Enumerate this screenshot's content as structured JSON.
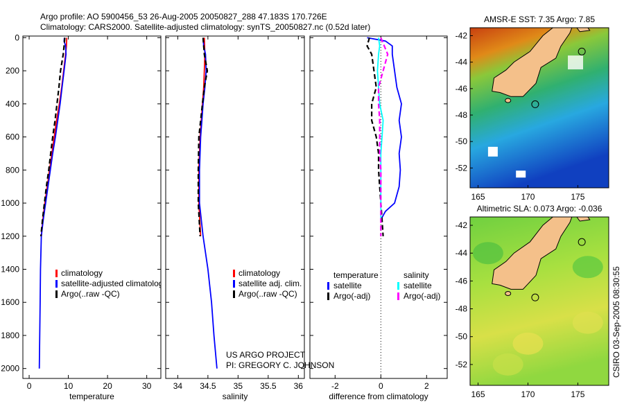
{
  "title_line1": "Argo profile: AO 5900456_53 26-Aug-2005 20050827_288 47.183S 170.726E",
  "title_line2": "Climatology: CARS2000. Satellite-adjusted climatology: synTS_20050827.nc (0.52d later)",
  "credit_line1": "US ARGO PROJECT",
  "credit_line2": "PI: GREGORY C. JOHNSON",
  "side_label": "CSIRO 03-Sep-2005 08:30:55",
  "chart_data": [
    {
      "type": "line",
      "id": "temperature",
      "xlabel": "temperature",
      "xlim": [
        -1.6,
        33.6
      ],
      "ylim": [
        2060,
        -10
      ],
      "xticks": [
        0,
        10,
        20,
        30
      ],
      "yticks": [
        0,
        200,
        400,
        600,
        800,
        1000,
        1200,
        1400,
        1600,
        1800,
        2000
      ],
      "legend": [
        "climatology",
        "satellite-adjusted climatolog",
        "Argo(..raw -QC)"
      ],
      "series": [
        {
          "name": "climatology",
          "color": "#ff0000",
          "style": "solid",
          "depth": [
            0,
            50,
            100,
            200,
            300,
            400,
            500,
            600,
            700,
            800,
            900,
            1000,
            1100,
            1200
          ],
          "values": [
            9.6,
            9.5,
            9.3,
            8.8,
            8.3,
            7.7,
            7.0,
            6.4,
            5.8,
            5.2,
            4.6,
            4.0,
            3.5,
            3.1
          ]
        },
        {
          "name": "satellite-adjusted climatology",
          "color": "#0000ff",
          "style": "solid",
          "depth": [
            0,
            20,
            50,
            100,
            200,
            300,
            400,
            500,
            600,
            700,
            800,
            900,
            1000,
            1100,
            1200,
            1400,
            1600,
            1800,
            2000
          ],
          "values": [
            9.0,
            8.9,
            9.3,
            9.4,
            8.9,
            8.4,
            7.9,
            7.3,
            6.7,
            6.0,
            5.4,
            4.8,
            4.2,
            3.6,
            3.1,
            2.9,
            2.8,
            2.7,
            2.6
          ]
        },
        {
          "name": "Argo(..raw -QC)",
          "color": "#000000",
          "style": "dashed",
          "depth": [
            0,
            50,
            100,
            200,
            300,
            400,
            500,
            600,
            700,
            800,
            900,
            1000,
            1100,
            1200
          ],
          "values": [
            9.1,
            8.9,
            8.7,
            8.0,
            7.6,
            7.1,
            6.6,
            6.0,
            5.5,
            5.0,
            4.4,
            3.9,
            3.4,
            3.0
          ]
        }
      ]
    },
    {
      "type": "line",
      "id": "salinity",
      "xlabel": "salinity",
      "xlim": [
        33.8,
        36.1
      ],
      "ylim": [
        2060,
        -10
      ],
      "xticks": [
        34,
        34.5,
        35,
        35.5,
        36
      ],
      "yticks": [],
      "legend": [
        "climatology",
        "satellite adj. clim.",
        "Argo(..raw -QC)"
      ],
      "series": [
        {
          "name": "climatology",
          "color": "#ff0000",
          "style": "solid",
          "depth": [
            0,
            100,
            200,
            300,
            400,
            500,
            600,
            800,
            1000,
            1200
          ],
          "values": [
            34.44,
            34.45,
            34.44,
            34.43,
            34.41,
            34.39,
            34.37,
            34.35,
            34.35,
            34.38
          ]
        },
        {
          "name": "satellite adj. clim.",
          "color": "#0000ff",
          "style": "solid",
          "depth": [
            0,
            50,
            100,
            200,
            300,
            400,
            500,
            600,
            800,
            1000,
            1200,
            1400,
            1600,
            1800,
            2000
          ],
          "values": [
            34.42,
            34.43,
            34.46,
            34.47,
            34.45,
            34.42,
            34.4,
            34.38,
            34.36,
            34.36,
            34.42,
            34.5,
            34.56,
            34.6,
            34.65
          ]
        },
        {
          "name": "Argo(..raw -QC)",
          "color": "#000000",
          "style": "dashed",
          "depth": [
            0,
            100,
            200,
            300,
            400,
            500,
            600,
            800,
            1000,
            1200
          ],
          "values": [
            34.42,
            34.44,
            34.49,
            34.44,
            34.41,
            34.38,
            34.35,
            34.34,
            34.34,
            34.37
          ]
        }
      ]
    },
    {
      "type": "line",
      "id": "difference",
      "xlabel": "difference from climatology",
      "xlim": [
        -3.1,
        2.9
      ],
      "ylim": [
        2060,
        -10
      ],
      "xticks": [
        -2,
        0,
        2
      ],
      "yticks": [],
      "legend_headers": [
        "temperature",
        "salinity"
      ],
      "legend": [
        "satellite",
        "Argo(-adj)",
        "satellite",
        "Argo(-adj)"
      ],
      "series": [
        {
          "name": "temperature satellite",
          "color": "#0000ff",
          "style": "solid",
          "depth": [
            0,
            20,
            50,
            100,
            200,
            300,
            400,
            500,
            600,
            700,
            800,
            900,
            1000,
            1050,
            1100
          ],
          "values": [
            -0.6,
            0.2,
            0.5,
            0.5,
            0.6,
            0.7,
            0.9,
            0.8,
            0.9,
            0.8,
            0.85,
            0.8,
            0.6,
            0.2,
            0.0
          ]
        },
        {
          "name": "temperature Argo(-adj)",
          "color": "#000000",
          "style": "dashed",
          "depth": [
            0,
            50,
            100,
            200,
            300,
            400,
            500,
            600,
            700,
            800,
            900,
            1000,
            1100,
            1200
          ],
          "values": [
            -0.5,
            -0.6,
            -0.4,
            -0.3,
            -0.2,
            -0.4,
            -0.4,
            -0.2,
            -0.1,
            -0.1,
            -0.05,
            0.0,
            0.05,
            0.1
          ]
        },
        {
          "name": "salinity satellite",
          "color": "#00ffff",
          "style": "solid",
          "depth": [
            0,
            50,
            100,
            200,
            300,
            400,
            500,
            600,
            700,
            800,
            900,
            1000,
            1100
          ],
          "values": [
            -0.1,
            -0.05,
            -0.1,
            -0.15,
            -0.1,
            -0.05,
            0.1,
            0.05,
            0.0,
            0.0,
            0.0,
            0.0,
            0.0
          ]
        },
        {
          "name": "salinity Argo(-adj)",
          "color": "#ff00ff",
          "style": "dashed",
          "depth": [
            0,
            100,
            200,
            300,
            400,
            500,
            600,
            700,
            800,
            900,
            1000,
            1100,
            1200
          ],
          "values": [
            0.0,
            0.3,
            0.1,
            -0.1,
            -0.1,
            -0.05,
            -0.05,
            -0.05,
            0.0,
            0.0,
            0.0,
            0.0,
            0.0
          ]
        }
      ]
    },
    {
      "type": "heatmap",
      "id": "sst-map",
      "title": "AMSR-E SST: 7.35 Argo: 7.85",
      "xticks": [
        165,
        170,
        175
      ],
      "yticks": [
        -42,
        -44,
        -46,
        -48,
        -50,
        -52
      ],
      "xlim": [
        164.2,
        178.1
      ],
      "ylim": [
        -53.5,
        -41.4
      ],
      "argo_position": [
        170.726,
        -47.183
      ]
    },
    {
      "type": "heatmap",
      "id": "sla-map",
      "title": "Altimetric SLA: 0.073 Argo: -0.036",
      "xticks": [
        165,
        170,
        175
      ],
      "yticks": [
        -42,
        -44,
        -46,
        -48,
        -50,
        -52
      ],
      "xlim": [
        164.2,
        178.1
      ],
      "ylim": [
        -53.5,
        -41.4
      ],
      "argo_position": [
        170.726,
        -47.183
      ]
    }
  ]
}
